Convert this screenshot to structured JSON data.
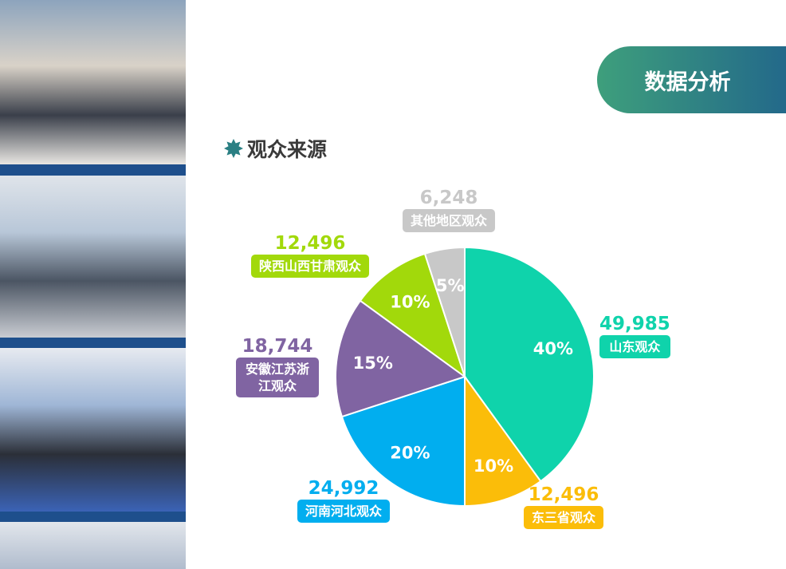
{
  "header": {
    "title": "数据分析"
  },
  "section": {
    "title": "观众来源",
    "icon": "star-icon",
    "icon_color": "#2a7f83"
  },
  "chart_data": {
    "type": "pie",
    "start": "top",
    "direction": "clockwise",
    "slices": [
      {
        "label": "山东观众",
        "value": 49985,
        "percent": "40%",
        "color": "#0fd3ab"
      },
      {
        "label": "东三省观众",
        "value": 12496,
        "percent": "10%",
        "color": "#fbbd09"
      },
      {
        "label": "河南河北观众",
        "value": 24992,
        "percent": "20%",
        "color": "#01aeef"
      },
      {
        "label": "安徽江苏浙江观众",
        "value": 18744,
        "percent": "15%",
        "color": "#8064a2"
      },
      {
        "label": "陕西山西甘肃观众",
        "value": 12496,
        "percent": "10%",
        "color": "#a2d90b"
      },
      {
        "label": "其他地区观众",
        "value": 6248,
        "percent": "5%",
        "color": "#c8c8c8"
      }
    ],
    "value_labels": [
      "49,985",
      "12,496",
      "24,992",
      "18,744",
      "12,496",
      "6,248"
    ]
  }
}
